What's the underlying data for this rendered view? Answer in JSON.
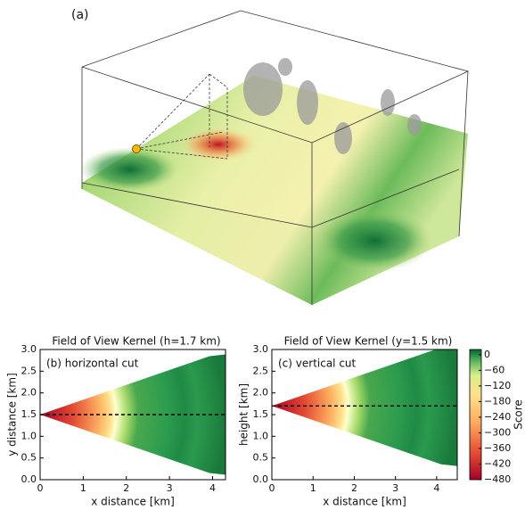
{
  "panel_label": "(a)",
  "chart_data": [
    {
      "type": "heatmap",
      "title": "Field of View Kernel (h=1.7 km)",
      "annotation": "(b) horizontal cut",
      "x_label": "x distance [km]",
      "y_label": "y distance [km]",
      "xlim": [
        0,
        4.3
      ],
      "xticks": [
        0,
        1,
        2,
        3,
        4
      ],
      "ylim": [
        0,
        3
      ],
      "yticks": [
        {
          "value": 0,
          "label": "0.0"
        },
        {
          "value": 0.5,
          "label": "0.5"
        },
        {
          "value": 1,
          "label": "1.0"
        },
        {
          "value": 1.5,
          "label": "1.5"
        },
        {
          "value": 2,
          "label": "2.0"
        },
        {
          "value": 2.5,
          "label": "2.5"
        },
        {
          "value": 3,
          "label": "3.0"
        }
      ],
      "cut_line": 1.5
    },
    {
      "type": "heatmap",
      "title": "Field of View Kernel (y=1.5 km)",
      "annotation": "(c) vertical cut",
      "x_label": "x distance [km]",
      "y_label": "height [km]",
      "xlim": [
        0,
        4.5
      ],
      "xticks": [
        0,
        1,
        2,
        3,
        4
      ],
      "ylim": [
        0,
        3
      ],
      "yticks": [
        {
          "value": 0,
          "label": "0.0"
        },
        {
          "value": 0.5,
          "label": "0.5"
        },
        {
          "value": 1,
          "label": "1.0"
        },
        {
          "value": 1.5,
          "label": "1.5"
        },
        {
          "value": 2,
          "label": "2.0"
        },
        {
          "value": 2.5,
          "label": "2.5"
        },
        {
          "value": 3,
          "label": "3.0"
        }
      ],
      "cut_line": 1.7,
      "colorbar": {
        "label": "Score",
        "lim": [
          -480,
          20
        ],
        "ticks": [
          0,
          {
            "value": -60,
            "label": "−60"
          },
          {
            "value": -120,
            "label": "−120"
          },
          {
            "value": -180,
            "label": "−180"
          },
          {
            "value": -240,
            "label": "−240"
          },
          {
            "value": -300,
            "label": "−300"
          },
          {
            "value": -360,
            "label": "−360"
          },
          {
            "value": -420,
            "label": "−420"
          },
          {
            "value": -480,
            "label": "−480"
          }
        ]
      }
    }
  ]
}
